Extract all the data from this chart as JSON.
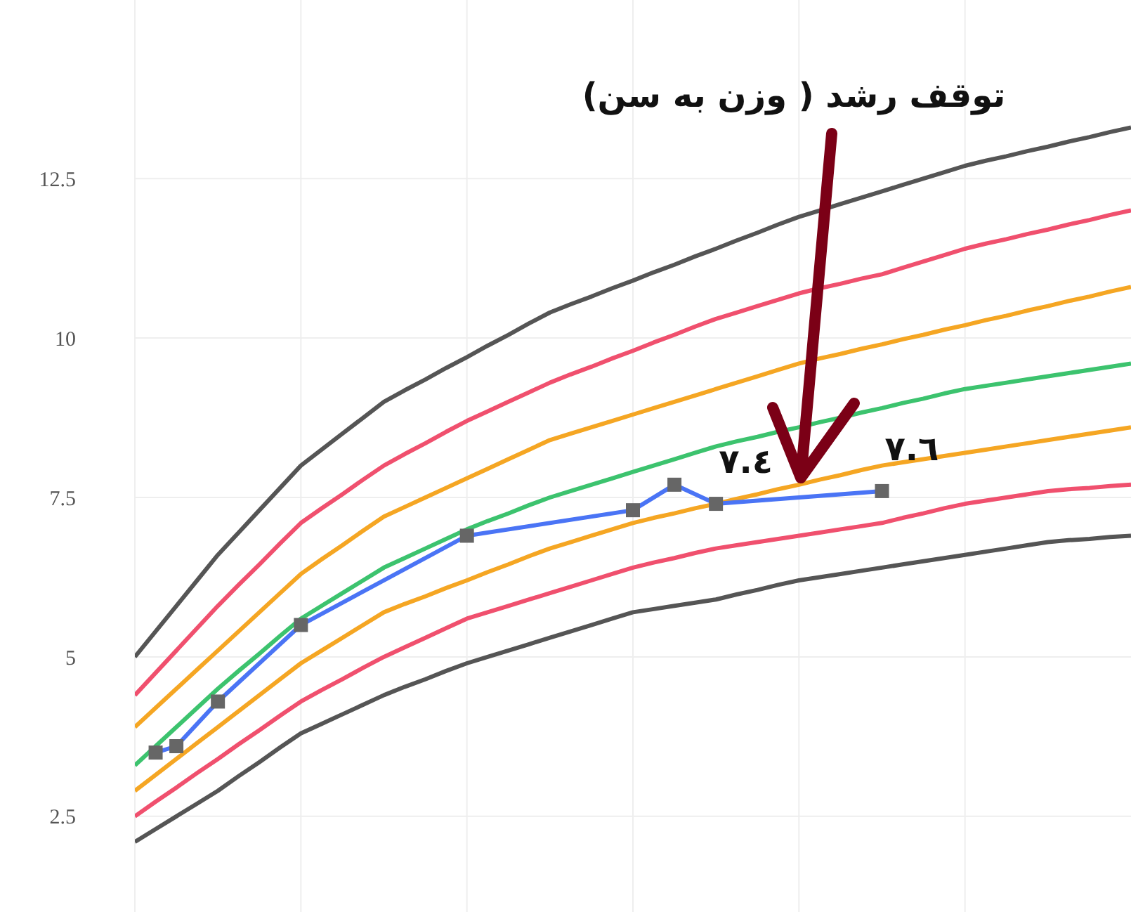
{
  "chart_data": {
    "type": "line",
    "categories": [
      null,
      null,
      null,
      null,
      null,
      null,
      null,
      null,
      null,
      null,
      null,
      null,
      null,
      null,
      null,
      null,
      null,
      null,
      null,
      null,
      null,
      null,
      null,
      null,
      null,
      null,
      null,
      null,
      null,
      null,
      null,
      null,
      null,
      null,
      null,
      null,
      null,
      null,
      null,
      null,
      null,
      null,
      null,
      null,
      null,
      null,
      null,
      null,
      null
    ],
    "ylim": [
      1,
      15.3
    ],
    "yticks": [
      2.5,
      5,
      7.5,
      10,
      12.5
    ],
    "grid": true,
    "tick_labels": "y",
    "line_style": "solid",
    "series": [
      {
        "color": "#555555",
        "values": [
          2.1,
          2.3,
          2.5,
          2.7,
          2.9,
          3.13,
          3.35,
          3.58,
          3.8,
          3.95,
          4.1,
          4.25,
          4.4,
          4.53,
          4.65,
          4.78,
          4.9,
          5.0,
          5.1,
          5.2,
          5.3,
          5.4,
          5.5,
          5.6,
          5.7,
          5.75,
          5.8,
          5.85,
          5.9,
          5.98,
          6.05,
          6.13,
          6.2,
          6.25,
          6.3,
          6.35,
          6.4,
          6.45,
          6.5,
          6.55,
          6.6,
          6.65,
          6.7,
          6.75,
          6.8,
          6.83,
          6.85,
          6.88,
          6.9
        ]
      },
      {
        "color": "#f0506e",
        "values": [
          2.5,
          2.73,
          2.95,
          3.18,
          3.4,
          3.63,
          3.85,
          4.08,
          4.3,
          4.48,
          4.65,
          4.83,
          5.0,
          5.15,
          5.3,
          5.45,
          5.6,
          5.7,
          5.8,
          5.9,
          6.0,
          6.1,
          6.2,
          6.3,
          6.4,
          6.48,
          6.55,
          6.63,
          6.7,
          6.75,
          6.8,
          6.85,
          6.9,
          6.95,
          7.0,
          7.05,
          7.1,
          7.18,
          7.25,
          7.33,
          7.4,
          7.45,
          7.5,
          7.55,
          7.6,
          7.63,
          7.65,
          7.68,
          7.7
        ]
      },
      {
        "color": "#f5a623",
        "values": [
          2.9,
          3.15,
          3.4,
          3.65,
          3.9,
          4.15,
          4.4,
          4.65,
          4.9,
          5.1,
          5.3,
          5.5,
          5.7,
          5.83,
          5.95,
          6.08,
          6.2,
          6.33,
          6.45,
          6.58,
          6.7,
          6.8,
          6.9,
          7.0,
          7.1,
          7.18,
          7.25,
          7.33,
          7.4,
          7.48,
          7.55,
          7.63,
          7.7,
          7.78,
          7.85,
          7.93,
          8.0,
          8.05,
          8.1,
          8.15,
          8.2,
          8.25,
          8.3,
          8.35,
          8.4,
          8.45,
          8.5,
          8.55,
          8.6
        ]
      },
      {
        "color": "#3cc36e",
        "values": [
          3.3,
          3.6,
          3.9,
          4.2,
          4.5,
          4.78,
          5.05,
          5.33,
          5.6,
          5.8,
          6.0,
          6.2,
          6.4,
          6.55,
          6.7,
          6.85,
          7.0,
          7.13,
          7.25,
          7.38,
          7.5,
          7.6,
          7.7,
          7.8,
          7.9,
          8.0,
          8.1,
          8.2,
          8.3,
          8.38,
          8.45,
          8.53,
          8.6,
          8.68,
          8.75,
          8.83,
          8.9,
          8.98,
          9.05,
          9.13,
          9.2,
          9.25,
          9.3,
          9.35,
          9.4,
          9.45,
          9.5,
          9.55,
          9.6
        ]
      },
      {
        "color": "#f5a623",
        "values": [
          3.9,
          4.2,
          4.5,
          4.8,
          5.1,
          5.4,
          5.7,
          6.0,
          6.3,
          6.53,
          6.75,
          6.98,
          7.2,
          7.35,
          7.5,
          7.65,
          7.8,
          7.95,
          8.1,
          8.25,
          8.4,
          8.5,
          8.6,
          8.7,
          8.8,
          8.9,
          9.0,
          9.1,
          9.2,
          9.3,
          9.4,
          9.5,
          9.6,
          9.68,
          9.75,
          9.83,
          9.9,
          9.98,
          10.05,
          10.13,
          10.2,
          10.28,
          10.35,
          10.43,
          10.5,
          10.58,
          10.65,
          10.73,
          10.8
        ]
      },
      {
        "color": "#f0506e",
        "values": [
          4.4,
          4.75,
          5.1,
          5.45,
          5.8,
          6.13,
          6.45,
          6.78,
          7.1,
          7.33,
          7.55,
          7.78,
          8.0,
          8.18,
          8.35,
          8.53,
          8.7,
          8.85,
          9.0,
          9.15,
          9.3,
          9.43,
          9.55,
          9.68,
          9.8,
          9.93,
          10.05,
          10.18,
          10.3,
          10.4,
          10.5,
          10.6,
          10.7,
          10.78,
          10.85,
          10.93,
          11.0,
          11.1,
          11.2,
          11.3,
          11.4,
          11.48,
          11.55,
          11.63,
          11.7,
          11.78,
          11.85,
          11.93,
          12.0
        ]
      },
      {
        "color": "#555555",
        "values": [
          5.0,
          5.4,
          5.8,
          6.2,
          6.6,
          6.95,
          7.3,
          7.65,
          8.0,
          8.25,
          8.5,
          8.75,
          9.0,
          9.18,
          9.35,
          9.53,
          9.7,
          9.88,
          10.05,
          10.23,
          10.4,
          10.53,
          10.65,
          10.78,
          10.9,
          11.03,
          11.15,
          11.28,
          11.4,
          11.53,
          11.65,
          11.78,
          11.9,
          12.0,
          12.1,
          12.2,
          12.3,
          12.4,
          12.5,
          12.6,
          12.7,
          12.78,
          12.85,
          12.93,
          13.0,
          13.08,
          13.15,
          13.23,
          13.3
        ]
      },
      {
        "color": "#4a74f5",
        "marker": "square",
        "values": [
          null,
          3.5,
          3.6,
          null,
          4.3,
          null,
          null,
          null,
          5.5,
          null,
          null,
          null,
          null,
          null,
          null,
          null,
          6.9,
          null,
          null,
          null,
          null,
          null,
          null,
          null,
          7.3,
          null,
          7.7,
          null,
          7.4,
          null,
          null,
          null,
          null,
          null,
          null,
          null,
          7.6,
          null,
          null,
          null,
          null,
          null,
          null,
          null,
          null,
          null,
          null,
          null,
          null
        ],
        "value_labels": [
          null,
          null,
          null,
          null,
          null,
          null,
          null,
          null,
          null,
          null,
          null,
          null,
          null,
          null,
          null,
          null,
          null,
          null,
          null,
          null,
          null,
          null,
          null,
          null,
          null,
          null,
          null,
          null,
          "٧.٤",
          null,
          null,
          null,
          null,
          null,
          null,
          null,
          "٧.٦",
          null,
          null,
          null,
          null,
          null,
          null,
          null,
          null,
          null,
          null,
          null,
          null
        ]
      }
    ],
    "annotations": [
      "توقف رشد ( وزن به سن)"
    ]
  }
}
